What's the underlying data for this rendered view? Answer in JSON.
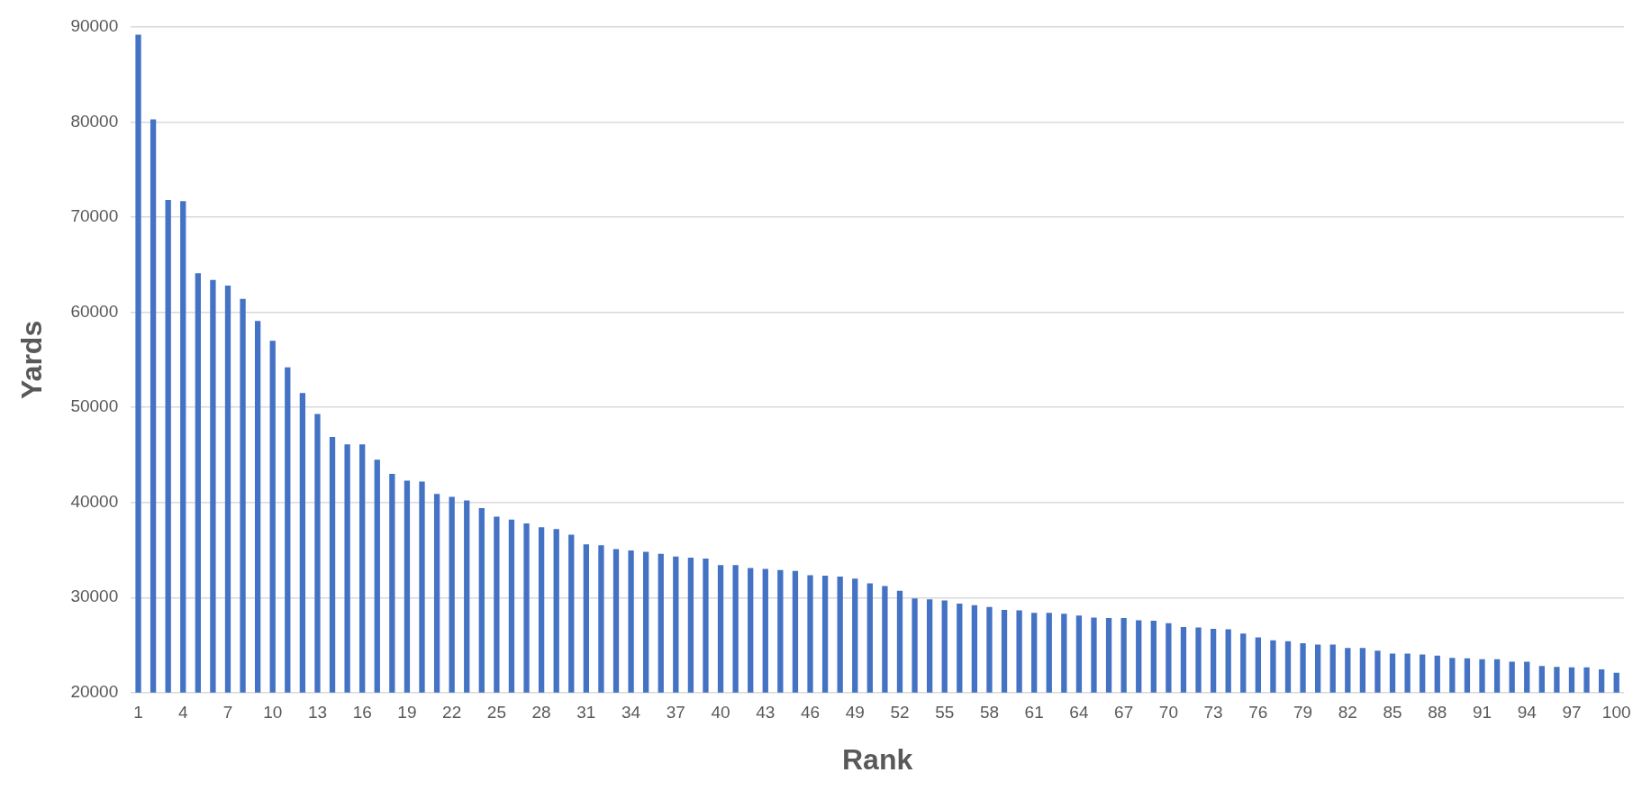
{
  "chart_data": {
    "type": "bar",
    "xlabel": "Rank",
    "ylabel": "Yards",
    "categories": [
      "1",
      null,
      null,
      "4",
      null,
      null,
      "7",
      null,
      null,
      "10",
      null,
      null,
      "13",
      null,
      null,
      "16",
      null,
      null,
      "19",
      null,
      null,
      "22",
      null,
      null,
      "25",
      null,
      null,
      "28",
      null,
      null,
      "31",
      null,
      null,
      "34",
      null,
      null,
      "37",
      null,
      null,
      "40",
      null,
      null,
      "43",
      null,
      null,
      "46",
      null,
      null,
      "49",
      null,
      null,
      "52",
      null,
      null,
      "55",
      null,
      null,
      "58",
      null,
      null,
      "61",
      null,
      null,
      "64",
      null,
      null,
      "67",
      null,
      null,
      "70",
      null,
      null,
      "73",
      null,
      null,
      "76",
      null,
      null,
      "79",
      null,
      null,
      "82",
      null,
      null,
      "85",
      null,
      null,
      "88",
      null,
      null,
      "91",
      null,
      null,
      "94",
      null,
      null,
      "97",
      null,
      null,
      "100"
    ],
    "values": [
      89200,
      80300,
      71800,
      71700,
      64100,
      63400,
      62800,
      61400,
      59100,
      57000,
      54200,
      51500,
      49300,
      46900,
      46100,
      46100,
      44500,
      43000,
      42300,
      42200,
      40900,
      40600,
      40200,
      39400,
      38500,
      38200,
      37800,
      37400,
      37200,
      36600,
      35600,
      35500,
      35100,
      34950,
      34800,
      34600,
      34300,
      34200,
      34100,
      33400,
      33400,
      33100,
      33000,
      32900,
      32800,
      32350,
      32300,
      32200,
      32000,
      31500,
      31200,
      30700,
      29900,
      29800,
      29700,
      29350,
      29200,
      29000,
      28700,
      28650,
      28400,
      28400,
      28300,
      28100,
      27900,
      27850,
      27850,
      27600,
      27550,
      27300,
      26900,
      26850,
      26700,
      26650,
      26200,
      25800,
      25500,
      25400,
      25200,
      25050,
      25050,
      24700,
      24700,
      24400,
      24100,
      24100,
      24000,
      23900,
      23650,
      23600,
      23500,
      23500,
      23250,
      23250,
      22800,
      22700,
      22650,
      22650,
      22450,
      22100
    ],
    "color": "#4472c4",
    "ylim": [
      20000,
      90000
    ],
    "yticks": [
      20000,
      30000,
      40000,
      50000,
      60000,
      70000,
      80000,
      90000
    ],
    "grid": "y",
    "legend": false
  }
}
